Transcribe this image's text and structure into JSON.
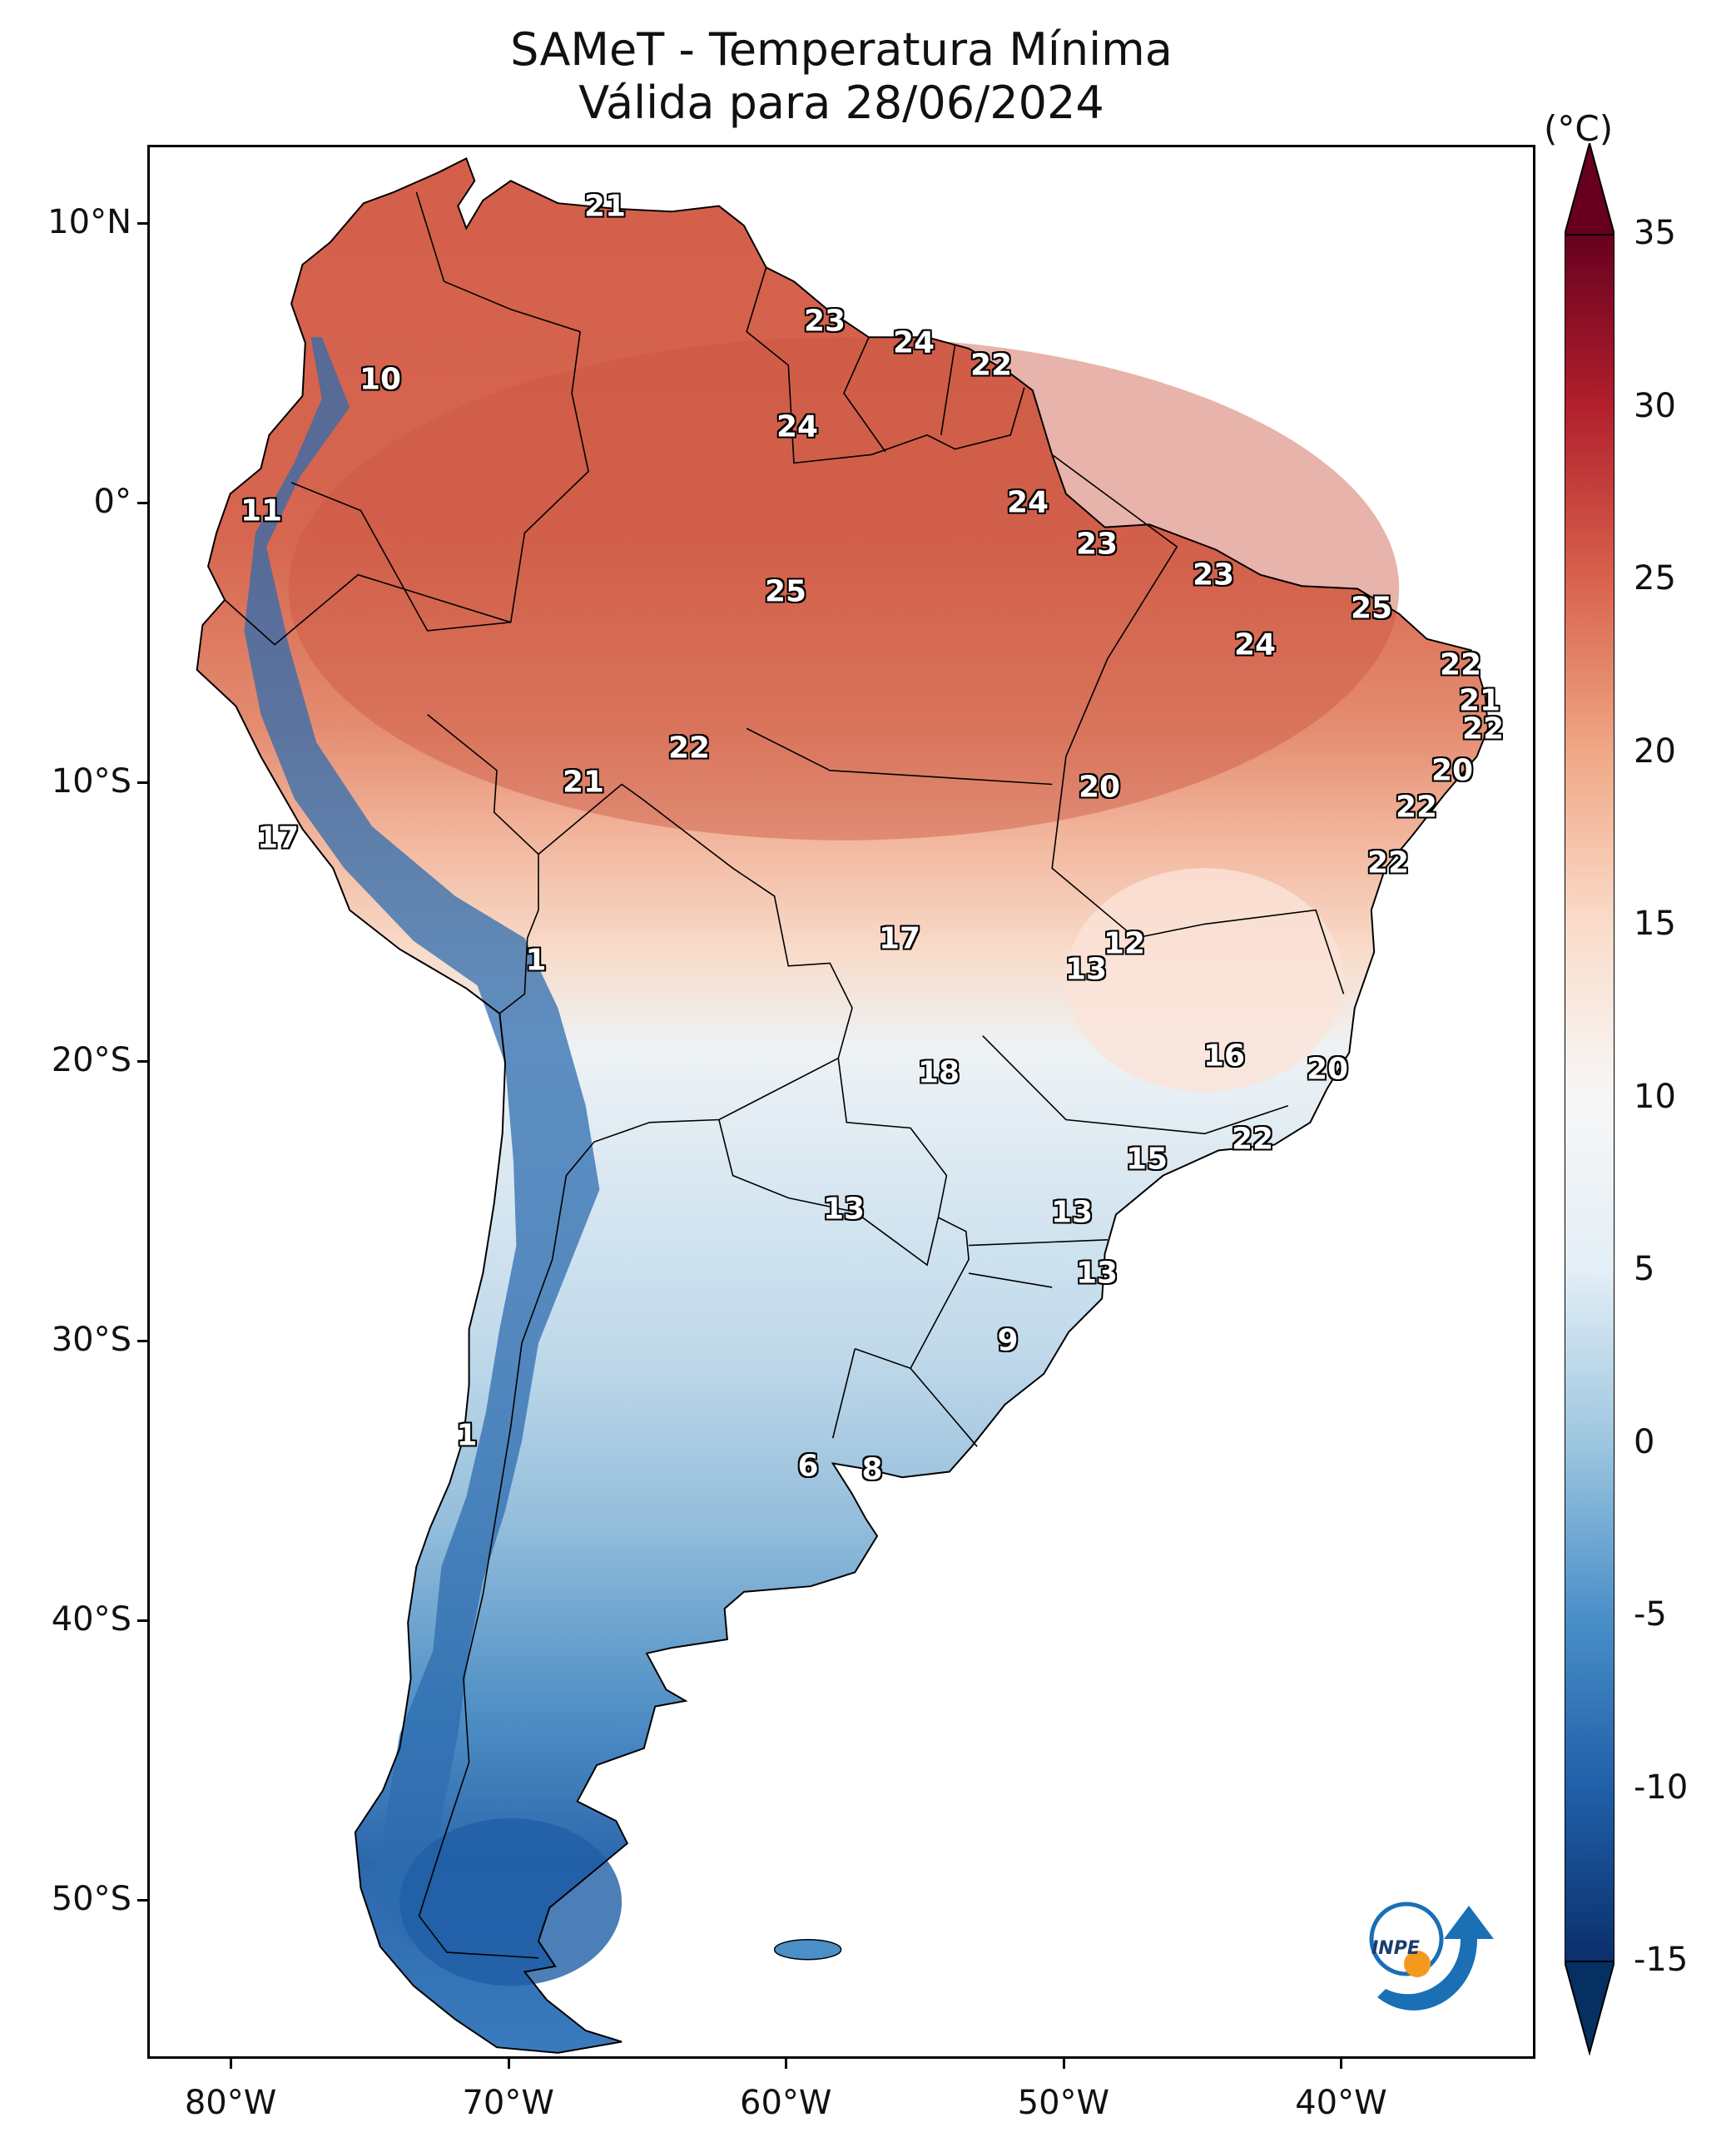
{
  "title": {
    "line1": "SAMeT - Temperatura Mínima",
    "line2": "Válida para 28/06/2024"
  },
  "colorbar": {
    "unit": "(°C)",
    "min": -15,
    "max": 35,
    "ticks": [
      "35",
      "30",
      "25",
      "20",
      "15",
      "10",
      "5",
      "0",
      "-5",
      "-10",
      "-15"
    ],
    "tick_values": [
      35,
      30,
      25,
      20,
      15,
      10,
      5,
      0,
      -5,
      -10,
      -15
    ],
    "colors": [
      "#0b2f6b",
      "#1f5fa8",
      "#4a8fc8",
      "#9dc6e0",
      "#e3eef6",
      "#f7f7f7",
      "#fadcca",
      "#f0a886",
      "#d8624d",
      "#b2202c",
      "#67001f"
    ]
  },
  "axes": {
    "lat_labels": [
      "10°N",
      "0°",
      "10°S",
      "20°S",
      "30°S",
      "40°S",
      "50°S"
    ],
    "lat_values": [
      10,
      0,
      -10,
      -20,
      -30,
      -40,
      -50
    ],
    "lon_labels": [
      "80°W",
      "70°W",
      "60°W",
      "50°W",
      "40°W"
    ],
    "lon_values": [
      -80,
      -70,
      -60,
      -50,
      -40
    ],
    "lon_range": [
      -83,
      -33
    ],
    "lat_range": [
      -55.7,
      12.8
    ]
  },
  "logo": {
    "text": "INPE",
    "blue": "#1a6fb5",
    "orange": "#f39a1e"
  },
  "station_labels": [
    {
      "text": "21",
      "lon": -66.5,
      "lat": 10.6
    },
    {
      "text": "10",
      "lon": -74.6,
      "lat": 4.4
    },
    {
      "text": "11",
      "lon": -78.9,
      "lat": -0.3
    },
    {
      "text": "23",
      "lon": -58.6,
      "lat": 6.5
    },
    {
      "text": "24",
      "lon": -55.4,
      "lat": 5.7
    },
    {
      "text": "22",
      "lon": -52.6,
      "lat": 4.9
    },
    {
      "text": "24",
      "lon": -59.6,
      "lat": 2.7
    },
    {
      "text": "24",
      "lon": -51.3,
      "lat": 0.0
    },
    {
      "text": "23",
      "lon": -48.8,
      "lat": -1.5
    },
    {
      "text": "23",
      "lon": -44.6,
      "lat": -2.6
    },
    {
      "text": "25",
      "lon": -60.0,
      "lat": -3.2
    },
    {
      "text": "25",
      "lon": -38.9,
      "lat": -3.8
    },
    {
      "text": "24",
      "lon": -43.1,
      "lat": -5.1
    },
    {
      "text": "22",
      "lon": -35.7,
      "lat": -5.8
    },
    {
      "text": "21",
      "lon": -35.0,
      "lat": -7.1
    },
    {
      "text": "22",
      "lon": -34.9,
      "lat": -8.1
    },
    {
      "text": "22",
      "lon": -63.5,
      "lat": -8.8
    },
    {
      "text": "20",
      "lon": -36.0,
      "lat": -9.6
    },
    {
      "text": "21",
      "lon": -67.3,
      "lat": -10.0
    },
    {
      "text": "20",
      "lon": -48.7,
      "lat": -10.2
    },
    {
      "text": "22",
      "lon": -37.3,
      "lat": -10.9
    },
    {
      "text": "17",
      "lon": -78.3,
      "lat": -12.0
    },
    {
      "text": "22",
      "lon": -38.3,
      "lat": -12.9
    },
    {
      "text": "17",
      "lon": -55.9,
      "lat": -15.6
    },
    {
      "text": "12",
      "lon": -47.8,
      "lat": -15.8
    },
    {
      "text": "13",
      "lon": -49.2,
      "lat": -16.7
    },
    {
      "text": "1",
      "lon": -69.0,
      "lat": -16.4
    },
    {
      "text": "16",
      "lon": -44.2,
      "lat": -19.8
    },
    {
      "text": "18",
      "lon": -54.5,
      "lat": -20.4
    },
    {
      "text": "20",
      "lon": -40.5,
      "lat": -20.3
    },
    {
      "text": "22",
      "lon": -43.2,
      "lat": -22.8
    },
    {
      "text": "15",
      "lon": -47.0,
      "lat": -23.5
    },
    {
      "text": "13",
      "lon": -57.9,
      "lat": -25.3
    },
    {
      "text": "13",
      "lon": -49.7,
      "lat": -25.4
    },
    {
      "text": "13",
      "lon": -48.8,
      "lat": -27.6
    },
    {
      "text": "9",
      "lon": -52.0,
      "lat": -30.0
    },
    {
      "text": "1",
      "lon": -71.5,
      "lat": -33.4
    },
    {
      "text": "6",
      "lon": -59.2,
      "lat": -34.5
    },
    {
      "text": "8",
      "lon": -56.9,
      "lat": -34.6
    }
  ]
}
